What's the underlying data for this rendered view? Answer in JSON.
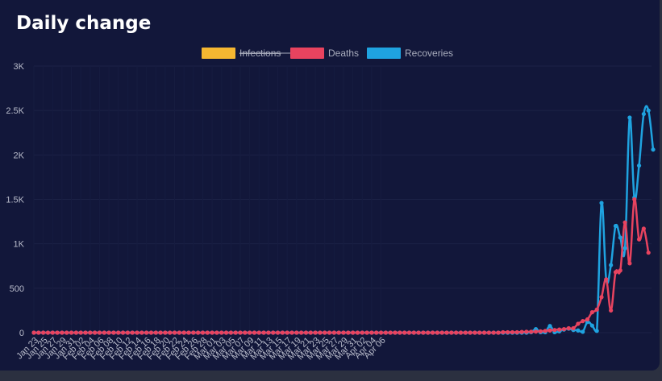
{
  "chart_data": {
    "type": "line",
    "title": "Daily change",
    "legend_position": "top-center",
    "grid": true,
    "ylim": [
      0,
      3000
    ],
    "y_ticks": [
      {
        "value": 0,
        "label": "0"
      },
      {
        "value": 500,
        "label": "500"
      },
      {
        "value": 1000,
        "label": "1K"
      },
      {
        "value": 1500,
        "label": "1.5K"
      },
      {
        "value": 2000,
        "label": "2K"
      },
      {
        "value": 2500,
        "label": "2.5K"
      },
      {
        "value": 3000,
        "label": "3K"
      }
    ],
    "x_tick_labels": [
      "Jan 23",
      "Jan 25",
      "Jan 27",
      "Jan 29",
      "Jan 31",
      "Feb 02",
      "Feb 04",
      "Feb 06",
      "Feb 08",
      "Feb 10",
      "Feb 12",
      "Feb 14",
      "Feb 16",
      "Feb 18",
      "Feb 20",
      "Feb 22",
      "Feb 24",
      "Feb 26",
      "Feb 28",
      "Mar 01",
      "Mar 03",
      "Mar 05",
      "Mar 07",
      "Mar 09",
      "Mar 11",
      "Mar 13",
      "Mar 15",
      "Mar 17",
      "Mar 19",
      "Mar 21",
      "Mar 23",
      "Mar 25",
      "Mar 27",
      "Mar 29",
      "Mar 31",
      "Apr 02",
      "Apr 04",
      "Apr 06"
    ],
    "series": [
      {
        "name": "Infections",
        "color": "#f5b731",
        "hidden": true,
        "values": []
      },
      {
        "name": "Deaths",
        "color": "#e8435f",
        "hidden": false,
        "values": [
          0,
          0,
          0,
          0,
          0,
          0,
          0,
          0,
          0,
          0,
          0,
          0,
          0,
          0,
          0,
          0,
          0,
          0,
          0,
          0,
          0,
          0,
          0,
          0,
          0,
          0,
          0,
          0,
          0,
          0,
          0,
          0,
          0,
          0,
          0,
          0,
          0,
          0,
          0,
          0,
          0,
          0,
          0,
          0,
          0,
          0,
          0,
          0,
          0,
          0,
          0,
          0,
          0,
          0,
          0,
          0,
          0,
          0,
          0,
          0,
          0,
          0,
          0,
          0,
          0,
          0,
          0,
          0,
          0,
          0,
          0,
          0,
          0,
          0,
          0,
          0,
          0,
          0,
          0,
          0,
          0,
          0,
          0,
          0,
          0,
          0,
          0,
          0,
          0,
          0,
          0,
          0,
          0,
          0,
          0,
          0,
          0,
          0,
          0,
          0,
          5,
          5,
          5,
          5,
          8,
          10,
          10,
          12,
          15,
          20,
          25,
          30,
          35,
          40,
          50,
          50,
          100,
          130,
          150,
          230,
          260,
          400,
          600,
          250,
          680,
          700,
          1240,
          780,
          1500,
          1050,
          1170,
          900
        ]
      },
      {
        "name": "Recoveries",
        "color": "#1fa3e0",
        "hidden": false,
        "values": [
          0,
          0,
          0,
          0,
          0,
          0,
          0,
          0,
          0,
          0,
          0,
          0,
          0,
          0,
          0,
          0,
          0,
          0,
          0,
          0,
          0,
          0,
          0,
          0,
          0,
          0,
          0,
          0,
          0,
          0,
          0,
          0,
          0,
          0,
          0,
          0,
          0,
          0,
          0,
          0,
          0,
          0,
          0,
          0,
          0,
          0,
          0,
          0,
          0,
          0,
          0,
          0,
          0,
          0,
          0,
          0,
          0,
          0,
          0,
          0,
          0,
          0,
          0,
          0,
          0,
          0,
          0,
          0,
          0,
          0,
          0,
          0,
          0,
          0,
          0,
          0,
          0,
          0,
          0,
          0,
          0,
          0,
          0,
          0,
          0,
          0,
          0,
          0,
          0,
          0,
          0,
          0,
          0,
          0,
          0,
          0,
          0,
          0,
          0,
          0,
          0,
          0,
          0,
          0,
          0,
          0,
          5,
          40,
          5,
          5,
          75,
          5,
          15,
          35,
          45,
          30,
          25,
          10,
          120,
          80,
          20,
          1460,
          600,
          760,
          1200,
          1070,
          950,
          2420,
          1520,
          1880,
          2460,
          2500,
          2060
        ]
      }
    ]
  }
}
